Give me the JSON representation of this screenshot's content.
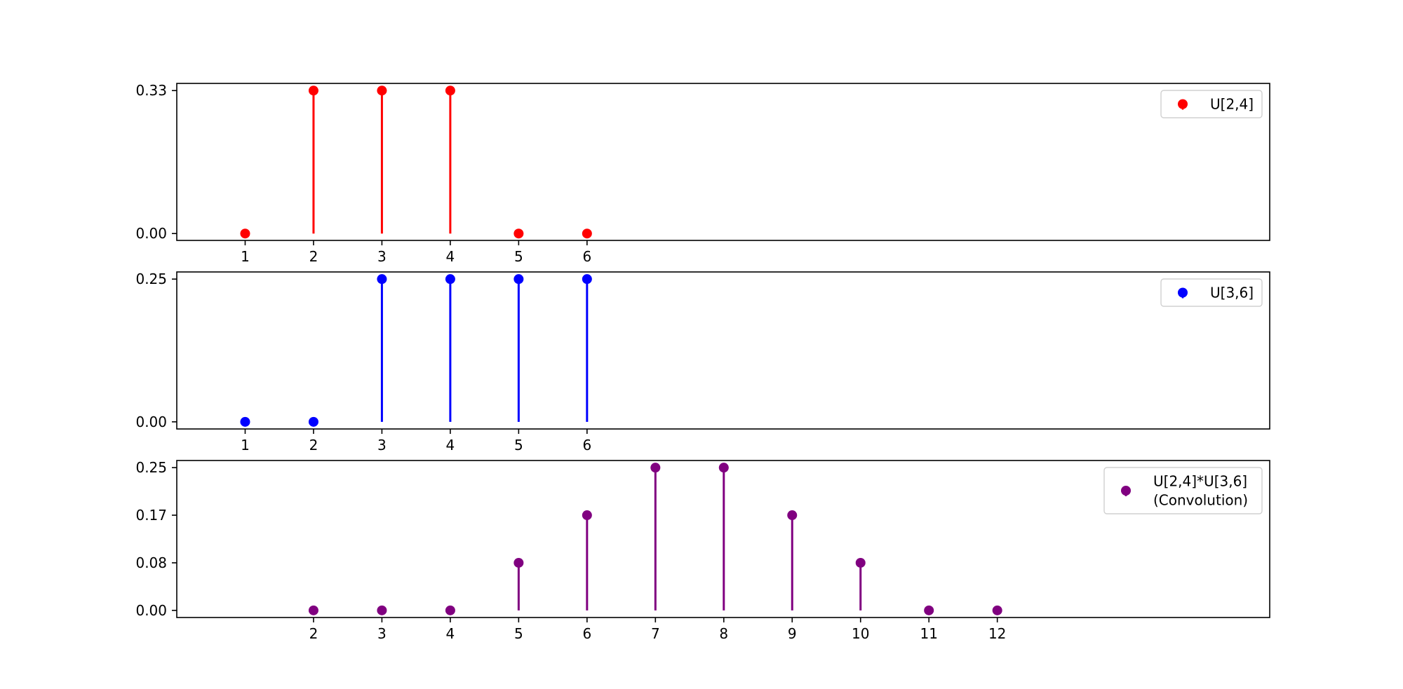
{
  "chart_data": [
    {
      "type": "stem",
      "x": [
        1,
        2,
        3,
        4,
        5,
        6
      ],
      "values": [
        0,
        0.3333,
        0.3333,
        0.3333,
        0,
        0
      ],
      "x_ticks": [
        "1",
        "2",
        "3",
        "4",
        "5",
        "6"
      ],
      "y_ticks": [
        0,
        0.3333
      ],
      "y_tick_labels": [
        "0.00",
        "0.33"
      ],
      "ylim": [
        -0.016,
        0.35
      ],
      "color": "#ff0000",
      "legend": {
        "label": "U[2,4]",
        "position": "upper right"
      }
    },
    {
      "type": "stem",
      "x": [
        1,
        2,
        3,
        4,
        5,
        6
      ],
      "values": [
        0,
        0,
        0.25,
        0.25,
        0.25,
        0.25
      ],
      "x_ticks": [
        "1",
        "2",
        "3",
        "4",
        "5",
        "6"
      ],
      "y_ticks": [
        0,
        0.25
      ],
      "y_tick_labels": [
        "0.00",
        "0.25"
      ],
      "ylim": [
        -0.0125,
        0.2625
      ],
      "color": "#0000ff",
      "legend": {
        "label": "U[3,6]",
        "position": "upper right"
      }
    },
    {
      "type": "stem",
      "x": [
        2,
        3,
        4,
        5,
        6,
        7,
        8,
        9,
        10,
        11,
        12
      ],
      "values": [
        0,
        0,
        0,
        0.0833,
        0.1667,
        0.25,
        0.25,
        0.1667,
        0.0833,
        0,
        0
      ],
      "x_ticks": [
        "2",
        "3",
        "4",
        "5",
        "6",
        "7",
        "8",
        "9",
        "10",
        "11",
        "12"
      ],
      "y_ticks": [
        0,
        0.0833,
        0.1667,
        0.25
      ],
      "y_tick_labels": [
        "0.00",
        "0.08",
        "0.17",
        "0.25"
      ],
      "ylim": [
        -0.0125,
        0.2625
      ],
      "color": "#800080",
      "legend": {
        "label_lines": [
          "U[2,4]*U[3,6]",
          "(Convolution)"
        ],
        "position": "upper right"
      }
    }
  ]
}
